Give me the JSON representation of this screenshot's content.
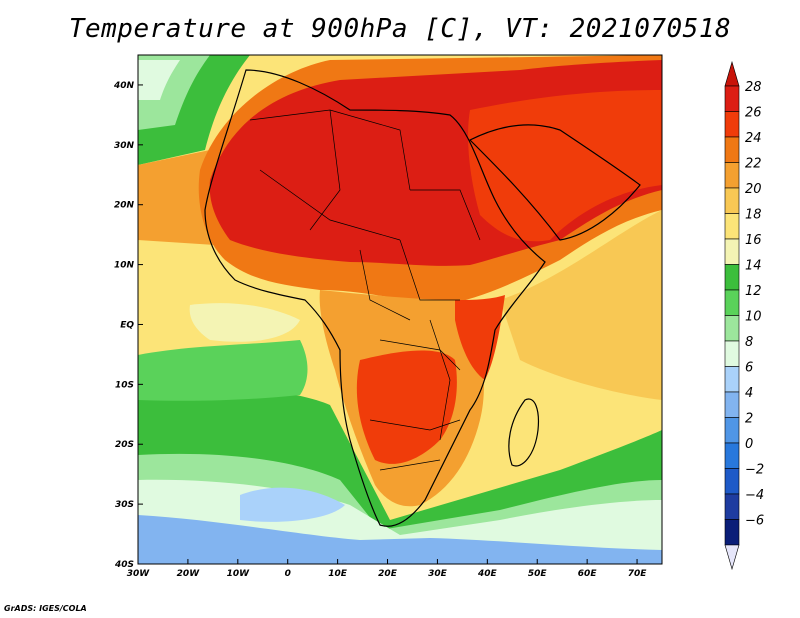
{
  "title": "Temperature at 900hPa [C], VT: 2021070518",
  "credit": "GrADS: IGES/COLA",
  "map": {
    "lon_range": [
      -30,
      75
    ],
    "lat_range": [
      -40,
      45
    ],
    "lon_ticks": [
      {
        "value": -30,
        "label": "30W"
      },
      {
        "value": -20,
        "label": "20W"
      },
      {
        "value": -10,
        "label": "10W"
      },
      {
        "value": 0,
        "label": "0"
      },
      {
        "value": 10,
        "label": "10E"
      },
      {
        "value": 20,
        "label": "20E"
      },
      {
        "value": 30,
        "label": "30E"
      },
      {
        "value": 40,
        "label": "40E"
      },
      {
        "value": 50,
        "label": "50E"
      },
      {
        "value": 60,
        "label": "60E"
      },
      {
        "value": 70,
        "label": "70E"
      }
    ],
    "lat_ticks": [
      {
        "value": 40,
        "label": "40N"
      },
      {
        "value": 30,
        "label": "30N"
      },
      {
        "value": 20,
        "label": "20N"
      },
      {
        "value": 10,
        "label": "10N"
      },
      {
        "value": 0,
        "label": "EQ"
      },
      {
        "value": -10,
        "label": "10S"
      },
      {
        "value": -20,
        "label": "20S"
      },
      {
        "value": -30,
        "label": "30S"
      },
      {
        "value": -40,
        "label": "40S"
      }
    ]
  },
  "colorbar": {
    "levels": [
      {
        "value": "28",
        "color": "#dc1e14"
      },
      {
        "value": "26",
        "color": "#f03c0a"
      },
      {
        "value": "24",
        "color": "#f07814"
      },
      {
        "value": "22",
        "color": "#f4a030"
      },
      {
        "value": "20",
        "color": "#f8c854"
      },
      {
        "value": "18",
        "color": "#fce478"
      },
      {
        "value": "16",
        "color": "#f4f4b4"
      },
      {
        "value": "14",
        "color": "#3cbe3c"
      },
      {
        "value": "12",
        "color": "#5ad25a"
      },
      {
        "value": "10",
        "color": "#9ce69c"
      },
      {
        "value": "8",
        "color": "#e0fae0"
      },
      {
        "value": "6",
        "color": "#aad2fa"
      },
      {
        "value": "4",
        "color": "#82b4f0"
      },
      {
        "value": "2",
        "color": "#5096e6"
      },
      {
        "value": "0",
        "color": "#2878dc"
      },
      {
        "value": "−2",
        "color": "#1e5ac8"
      },
      {
        "value": "−4",
        "color": "#1e3ca0"
      },
      {
        "value": "−6",
        "color": "#0a1e78"
      }
    ],
    "overflow_top_color": "#c8140a",
    "underflow_bottom_color": "#e6e6fa"
  }
}
